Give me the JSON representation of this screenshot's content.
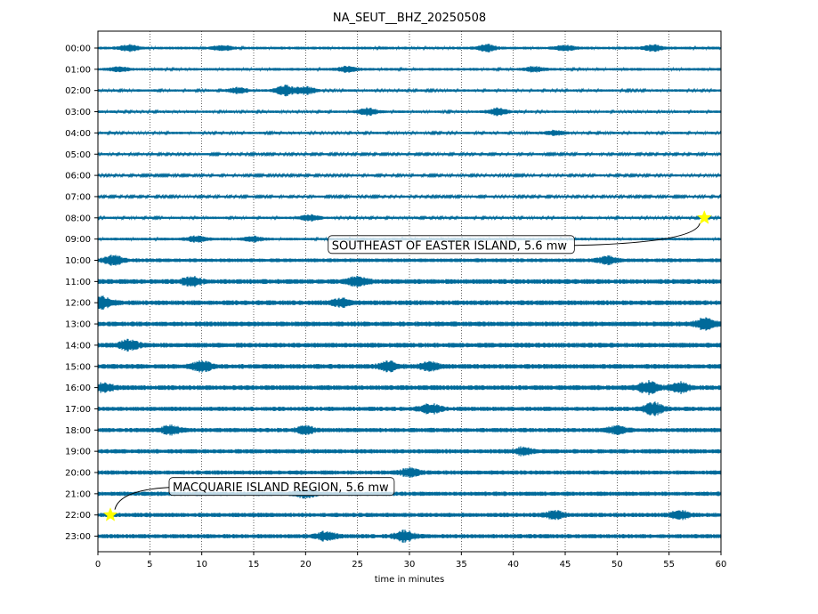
{
  "chart_data": {
    "type": "line",
    "title": "NA_SEUT__BHZ_20250508",
    "xlabel": "time in minutes",
    "ylabel": "",
    "xlim": [
      0,
      60
    ],
    "x_ticks": [
      "0",
      "5",
      "10",
      "15",
      "20",
      "25",
      "30",
      "35",
      "40",
      "45",
      "50",
      "55",
      "60"
    ],
    "row_labels": [
      "00:00",
      "01:00",
      "02:00",
      "03:00",
      "04:00",
      "05:00",
      "06:00",
      "07:00",
      "08:00",
      "09:00",
      "10:00",
      "11:00",
      "12:00",
      "13:00",
      "14:00",
      "15:00",
      "16:00",
      "17:00",
      "18:00",
      "19:00",
      "20:00",
      "21:00",
      "22:00",
      "23:00"
    ],
    "trace_color": "#006a9a",
    "vertical_grid": "dotted",
    "rows": [
      {
        "label": "00:00",
        "noise": 0.25,
        "bursts": [
          [
            3,
            0.5
          ],
          [
            12,
            0.4
          ],
          [
            37.5,
            0.55
          ],
          [
            45,
            0.45
          ],
          [
            53.5,
            0.5
          ]
        ]
      },
      {
        "label": "01:00",
        "noise": 0.25,
        "bursts": [
          [
            2,
            0.4
          ],
          [
            24,
            0.45
          ],
          [
            42,
            0.4
          ]
        ]
      },
      {
        "label": "02:00",
        "noise": 0.22,
        "bursts": [
          [
            18,
            0.9
          ],
          [
            20,
            0.7
          ],
          [
            13.5,
            0.5
          ]
        ]
      },
      {
        "label": "03:00",
        "noise": 0.22,
        "bursts": [
          [
            26,
            0.6
          ],
          [
            38.5,
            0.6
          ]
        ]
      },
      {
        "label": "04:00",
        "noise": 0.22,
        "bursts": [
          [
            44,
            0.4
          ]
        ]
      },
      {
        "label": "05:00",
        "noise": 0.2,
        "bursts": []
      },
      {
        "label": "06:00",
        "noise": 0.2,
        "bursts": []
      },
      {
        "label": "07:00",
        "noise": 0.2,
        "bursts": []
      },
      {
        "label": "08:00",
        "noise": 0.22,
        "bursts": [
          [
            20.5,
            0.5
          ]
        ]
      },
      {
        "label": "09:00",
        "noise": 0.25,
        "bursts": [
          [
            9.5,
            0.5
          ],
          [
            15,
            0.4
          ]
        ]
      },
      {
        "label": "10:00",
        "noise": 0.35,
        "bursts": [
          [
            1.5,
            0.8
          ],
          [
            49,
            0.6
          ]
        ]
      },
      {
        "label": "11:00",
        "noise": 0.45,
        "bursts": [
          [
            9,
            0.7
          ],
          [
            25,
            0.7
          ]
        ]
      },
      {
        "label": "12:00",
        "noise": 0.45,
        "bursts": [
          [
            0.5,
            0.9
          ],
          [
            23.5,
            0.6
          ]
        ]
      },
      {
        "label": "13:00",
        "noise": 0.45,
        "bursts": [
          [
            58.5,
            0.9
          ]
        ]
      },
      {
        "label": "14:00",
        "noise": 0.45,
        "bursts": [
          [
            3,
            0.8
          ]
        ]
      },
      {
        "label": "15:00",
        "noise": 0.45,
        "bursts": [
          [
            10,
            0.9
          ],
          [
            28,
            0.7
          ],
          [
            32,
            0.6
          ]
        ]
      },
      {
        "label": "16:00",
        "noise": 0.45,
        "bursts": [
          [
            0.5,
            0.7
          ],
          [
            53,
            1.0
          ],
          [
            56,
            0.8
          ]
        ]
      },
      {
        "label": "17:00",
        "noise": 0.4,
        "bursts": [
          [
            32,
            0.8
          ],
          [
            53.5,
            1.0
          ]
        ]
      },
      {
        "label": "18:00",
        "noise": 0.4,
        "bursts": [
          [
            7,
            0.7
          ],
          [
            20,
            0.6
          ],
          [
            50,
            0.6
          ]
        ]
      },
      {
        "label": "19:00",
        "noise": 0.4,
        "bursts": [
          [
            41,
            0.6
          ]
        ]
      },
      {
        "label": "20:00",
        "noise": 0.4,
        "bursts": [
          [
            30,
            0.6
          ]
        ]
      },
      {
        "label": "21:00",
        "noise": 0.4,
        "bursts": [
          [
            20,
            0.6
          ]
        ]
      },
      {
        "label": "22:00",
        "noise": 0.4,
        "bursts": [
          [
            44,
            0.6
          ],
          [
            56,
            0.7
          ]
        ]
      },
      {
        "label": "23:00",
        "noise": 0.4,
        "bursts": [
          [
            22,
            0.7
          ],
          [
            29.5,
            0.9
          ]
        ]
      }
    ],
    "annotations": [
      {
        "text": "SOUTHEAST OF EASTER ISLAND, 5.6 mw",
        "row": "08:00",
        "x": 58.4,
        "marker": "star",
        "marker_color": "#ffff00"
      },
      {
        "text": "MACQUARIE ISLAND REGION, 5.6 mw",
        "row": "22:00",
        "x": 1.2,
        "marker": "star",
        "marker_color": "#ffff00"
      }
    ]
  }
}
